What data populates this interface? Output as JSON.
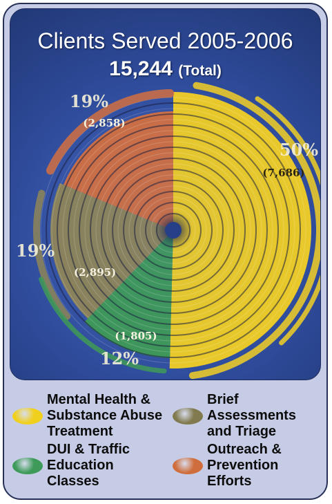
{
  "chart_data": {
    "type": "pie",
    "title": "Clients Served 2005-2006",
    "subtitle_value": "15,244",
    "subtitle_suffix": "(Total)",
    "categories": [
      "Mental Health & Substance Abuse Treatment",
      "DUI & Traffic Education Classes",
      "Brief Assessments and Triage",
      "Outreach & Prevention Efforts"
    ],
    "values": [
      7686,
      1805,
      2895,
      2858
    ],
    "percent_labels": [
      "50%",
      "12%",
      "19%",
      "19%"
    ],
    "count_labels": [
      "(7,686)",
      "(1,805)",
      "(2,895)",
      "(2,858)"
    ],
    "colors": [
      "#f2cf24",
      "#3f9a57",
      "#8e8558",
      "#d27041"
    ],
    "legend_position": "bottom"
  },
  "legend": [
    {
      "lines": [
        "Mental Health &",
        "Substance Abuse",
        "Treatment"
      ],
      "color": "#f0d01c"
    },
    {
      "lines": [
        "Brief",
        "Assessments",
        "and Triage"
      ],
      "color": "#807a4e"
    },
    {
      "lines": [
        "DUI & Traffic",
        "Education",
        "Classes"
      ],
      "color": "#3d9a58"
    },
    {
      "lines": [
        "Outreach &",
        "Prevention",
        "Efforts"
      ],
      "color": "#cf6e3c"
    }
  ]
}
